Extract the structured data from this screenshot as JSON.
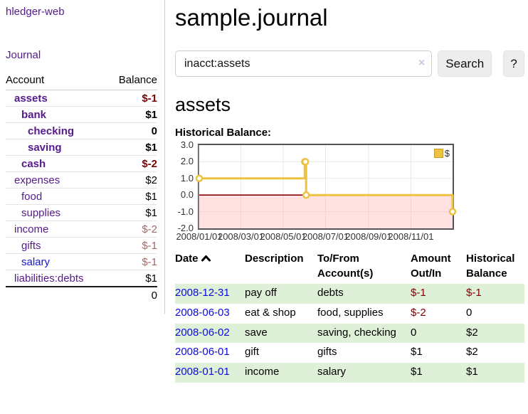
{
  "app": {
    "brand": "hledger-web",
    "nav_journal": "Journal"
  },
  "sidebar": {
    "headers": {
      "account": "Account",
      "balance": "Balance"
    },
    "accounts": [
      {
        "name": "assets",
        "balance": "$-1",
        "level": 1,
        "bold": true,
        "neg": "strong"
      },
      {
        "name": "bank",
        "balance": "$1",
        "level": 2,
        "bold": true,
        "neg": "none"
      },
      {
        "name": "checking",
        "balance": "0",
        "level": 3,
        "bold": true,
        "neg": "none"
      },
      {
        "name": "saving",
        "balance": "$1",
        "level": 3,
        "bold": true,
        "neg": "none"
      },
      {
        "name": "cash",
        "balance": "$-2",
        "level": 2,
        "bold": true,
        "neg": "strong"
      },
      {
        "name": "expenses",
        "balance": "$2",
        "level": 1,
        "bold": false,
        "neg": "none"
      },
      {
        "name": "food",
        "balance": "$1",
        "level": 2,
        "bold": false,
        "neg": "none"
      },
      {
        "name": "supplies",
        "balance": "$1",
        "level": 2,
        "bold": false,
        "neg": "none"
      },
      {
        "name": "income",
        "balance": "$-2",
        "level": 1,
        "bold": false,
        "neg": "weak"
      },
      {
        "name": "gifts",
        "balance": "$-1",
        "level": 2,
        "bold": false,
        "neg": "weak"
      },
      {
        "name": "salary",
        "balance": "$-1",
        "level": 2,
        "bold": false,
        "neg": "weak",
        "blue": true
      },
      {
        "name": "liabilities:debts",
        "balance": "$1",
        "level": 1,
        "bold": false,
        "neg": "none"
      }
    ],
    "total": "0"
  },
  "header": {
    "title": "sample.journal"
  },
  "search": {
    "value": "inacct:assets",
    "clear_icon": "×",
    "button_label": "Search",
    "help_label": "?"
  },
  "account_page": {
    "title": "assets",
    "chart_label": "Historical Balance:"
  },
  "chart_data": {
    "type": "line",
    "style": "step-after",
    "title": "Historical Balance",
    "legend": "$",
    "legend_position": "top-right",
    "series": [
      {
        "name": "$",
        "color": "#edc240",
        "points": [
          {
            "x": "2008-01-01",
            "y": 1
          },
          {
            "x": "2008-06-01",
            "y": 2
          },
          {
            "x": "2008-06-02",
            "y": 2
          },
          {
            "x": "2008-06-03",
            "y": 0
          },
          {
            "x": "2008-12-31",
            "y": -1
          }
        ]
      }
    ],
    "xrange": [
      "2008-01-01",
      "2008-12-31"
    ],
    "ylim": [
      -2,
      3
    ],
    "yticks": [
      "3.0",
      "2.0",
      "1.0",
      "0.0",
      "-1.0",
      "-2.0"
    ],
    "xticks": [
      "2008/01/01",
      "2008/03/01",
      "2008/05/01",
      "2008/07/01",
      "2008/09/01",
      "2008/11/01"
    ],
    "grid": true,
    "zero_line_color": "#8b0000",
    "negative_region_color": "#ffb3b3",
    "grid_color": "#e7e7e7"
  },
  "register": {
    "headers": {
      "date": "Date",
      "sort_icon": "chevron-up",
      "description": "Description",
      "accounts": "To/From Account(s)",
      "amount": "Amount Out/In",
      "balance": "Historical Balance"
    },
    "rows": [
      {
        "date": "2008-12-31",
        "description": "pay off",
        "accounts": "debts",
        "amount": "$-1",
        "amount_neg": true,
        "balance": "$-1",
        "balance_neg": true
      },
      {
        "date": "2008-06-03",
        "description": "eat & shop",
        "accounts": "food, supplies",
        "amount": "$-2",
        "amount_neg": true,
        "balance": "0",
        "balance_neg": false
      },
      {
        "date": "2008-06-02",
        "description": "save",
        "accounts": "saving, checking",
        "amount": "0",
        "amount_neg": false,
        "balance": "$2",
        "balance_neg": false
      },
      {
        "date": "2008-06-01",
        "description": "gift",
        "accounts": "gifts",
        "amount": "$1",
        "amount_neg": false,
        "balance": "$2",
        "balance_neg": false
      },
      {
        "date": "2008-01-01",
        "description": "income",
        "accounts": "salary",
        "amount": "$1",
        "amount_neg": false,
        "balance": "$1",
        "balance_neg": false
      }
    ]
  }
}
